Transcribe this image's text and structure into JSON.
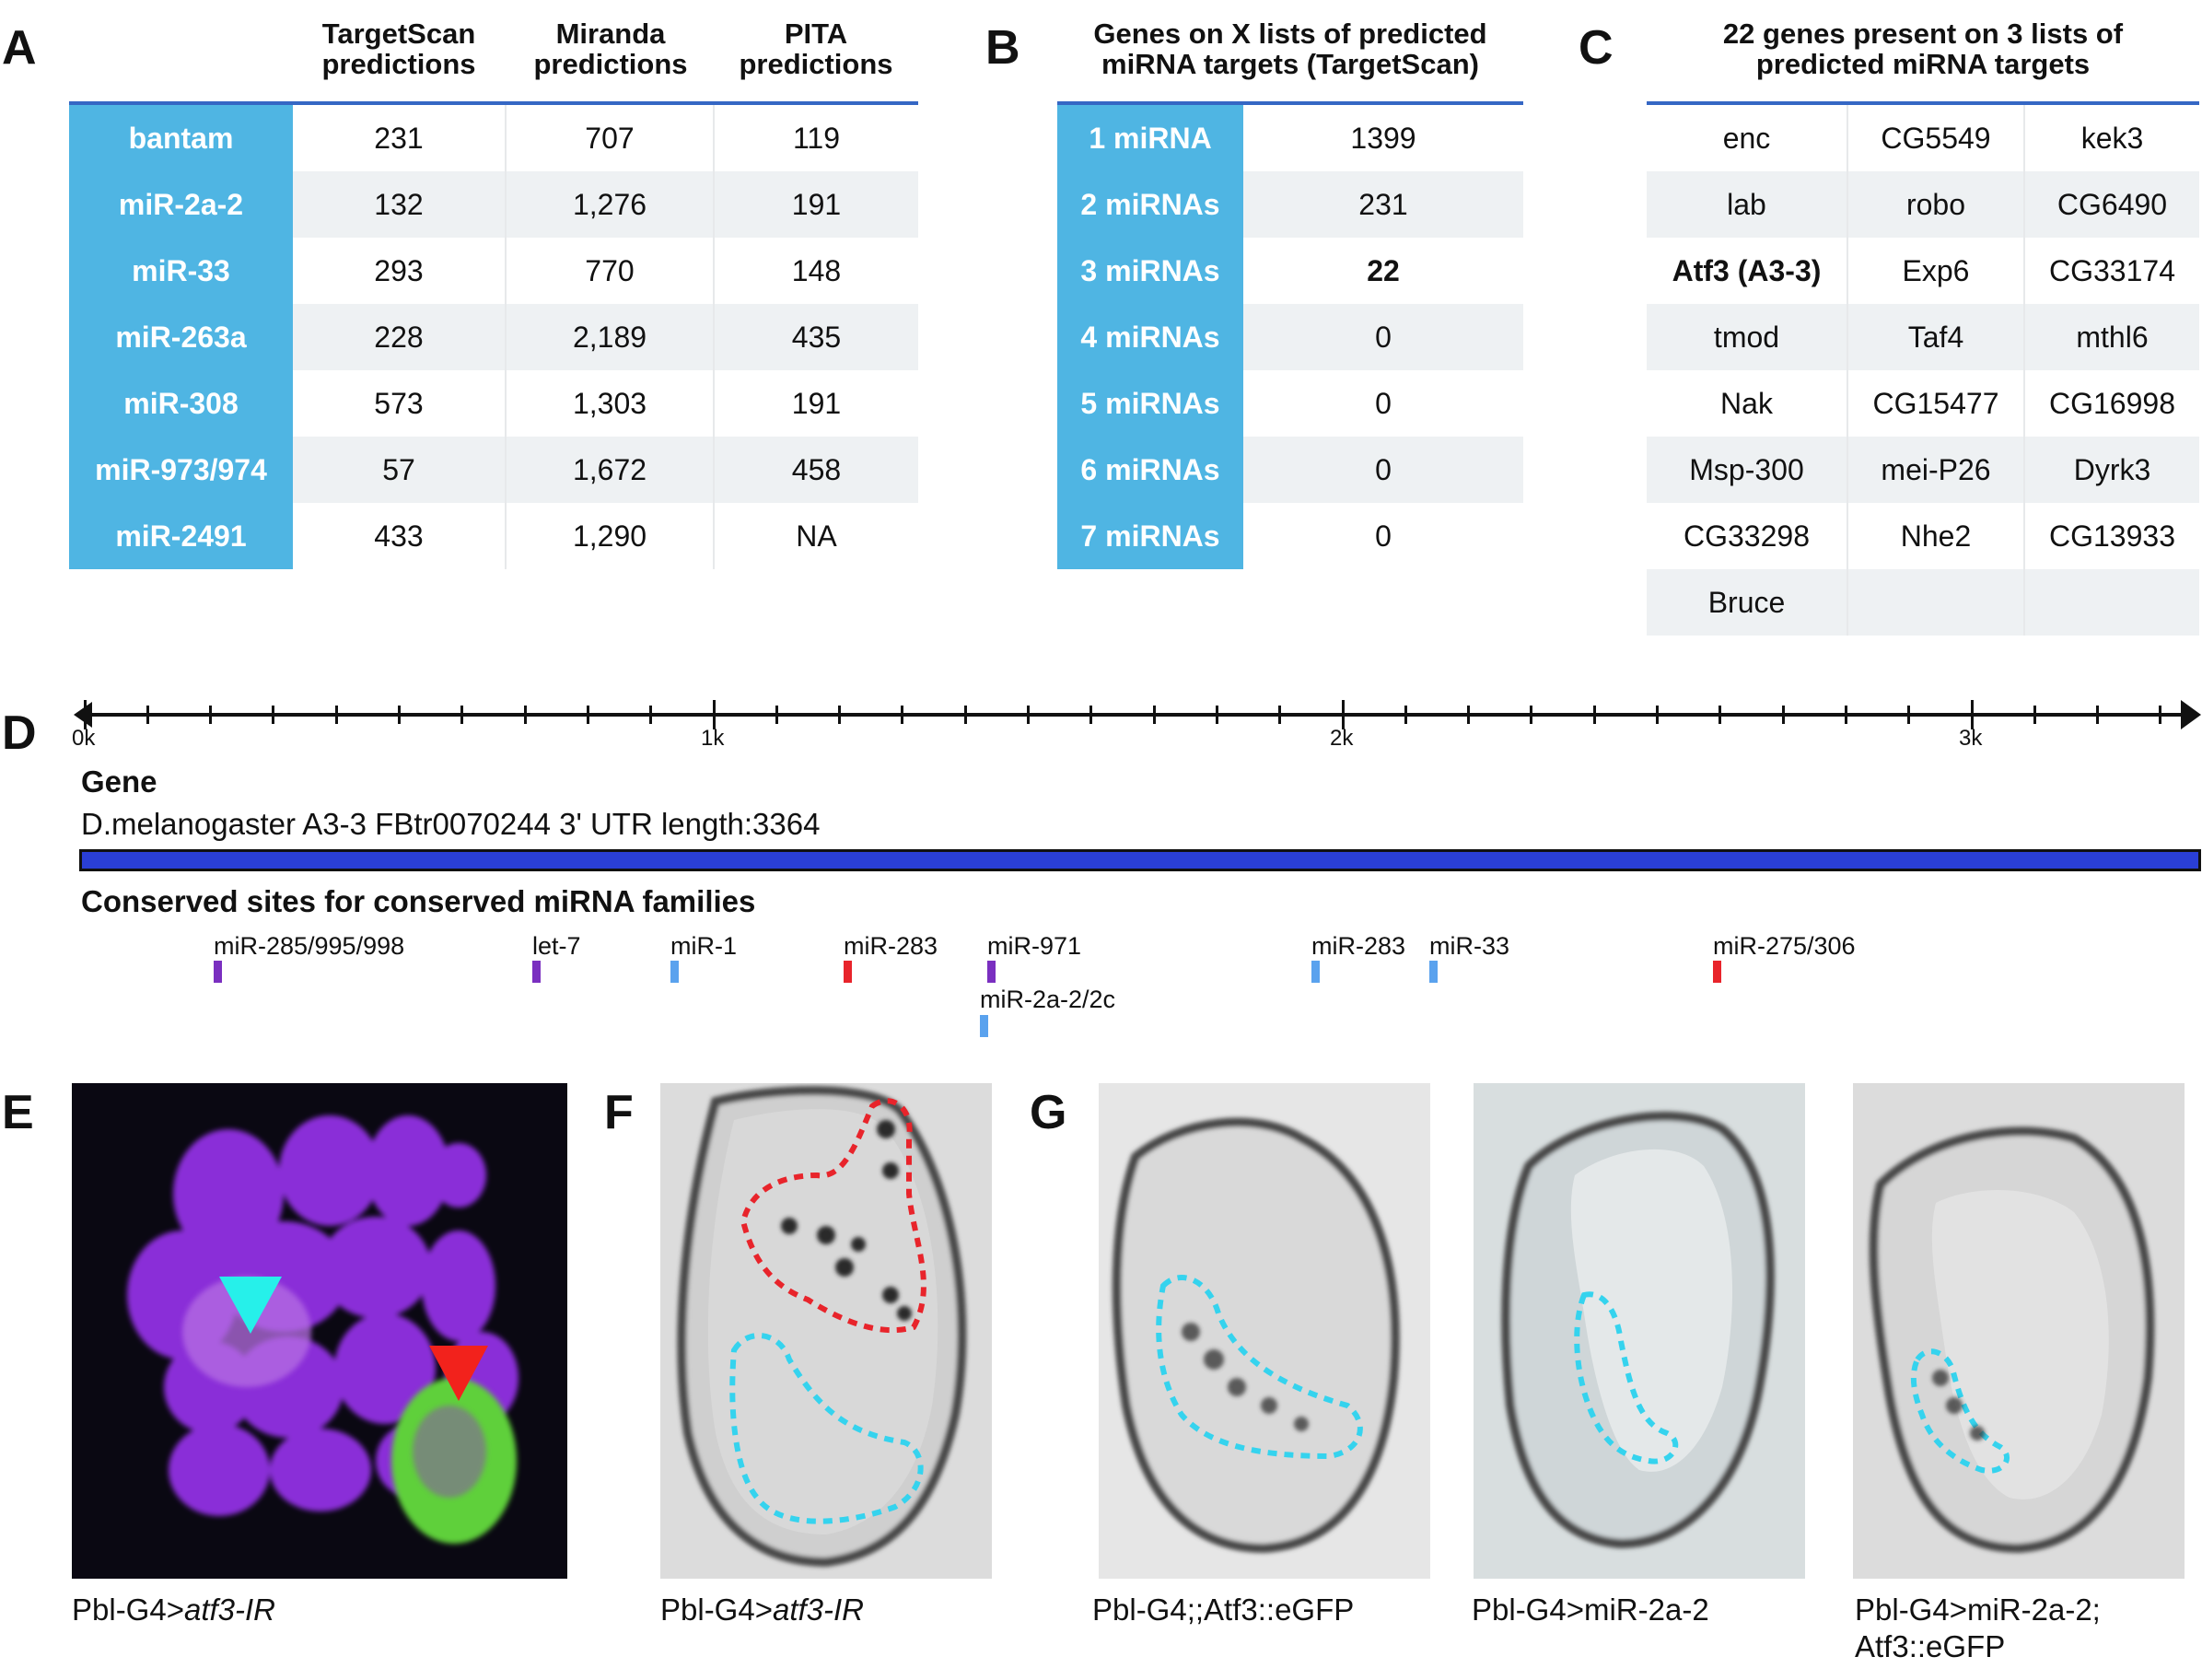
{
  "panel_letters": {
    "a": "A",
    "b": "B",
    "c": "C",
    "d": "D",
    "e": "E",
    "f": "F",
    "g": "G"
  },
  "tableA": {
    "headers": [
      "TargetScan\npredictions",
      "Miranda\npredictions",
      "PITA\npredictions"
    ],
    "rows": [
      {
        "mirna": "bantam",
        "ts": "231",
        "miranda": "707",
        "pita": "119"
      },
      {
        "mirna": "miR-2a-2",
        "ts": "132",
        "miranda": "1,276",
        "pita": "191"
      },
      {
        "mirna": "miR-33",
        "ts": "293",
        "miranda": "770",
        "pita": "148"
      },
      {
        "mirna": "miR-263a",
        "ts": "228",
        "miranda": "2,189",
        "pita": "435"
      },
      {
        "mirna": "miR-308",
        "ts": "573",
        "miranda": "1,303",
        "pita": "191"
      },
      {
        "mirna": "miR-973/974",
        "ts": "57",
        "miranda": "1,672",
        "pita": "458"
      },
      {
        "mirna": "miR-2491",
        "ts": "433",
        "miranda": "1,290",
        "pita": "NA"
      }
    ]
  },
  "tableB": {
    "title": "Genes on X lists of predicted\nmiRNA targets (TargetScan)",
    "rows": [
      {
        "label": "1 miRNA",
        "value": "1399"
      },
      {
        "label": "2 miRNAs",
        "value": "231"
      },
      {
        "label": "3 miRNAs",
        "value": "22"
      },
      {
        "label": "4 miRNAs",
        "value": "0"
      },
      {
        "label": "5 miRNAs",
        "value": "0"
      },
      {
        "label": "6 miRNAs",
        "value": "0"
      },
      {
        "label": "7 miRNAs",
        "value": "0"
      }
    ]
  },
  "tableC": {
    "title": "22 genes present on 3 lists of\npredicted miRNA targets",
    "rows": [
      [
        "enc",
        "CG5549",
        "kek3"
      ],
      [
        "lab",
        "robo",
        "CG6490"
      ],
      [
        "Atf3 (A3-3)",
        "Exp6",
        "CG33174"
      ],
      [
        "tmod",
        "Taf4",
        "mthl6"
      ],
      [
        "Nak",
        "CG15477",
        "CG16998"
      ],
      [
        "Msp-300",
        "mei-P26",
        "Dyrk3"
      ],
      [
        "CG33298",
        "Nhe2",
        "CG13933"
      ],
      [
        "Bruce",
        "",
        ""
      ]
    ]
  },
  "panelD": {
    "axis_labels": [
      "0k",
      "1k",
      "2k",
      "3k"
    ],
    "gene_heading": "Gene",
    "gene_desc": "D.melanogaster A3-3 FBtr0070244 3' UTR length:3364",
    "sites_heading": "Conserved sites for conserved miRNA families",
    "sites": [
      {
        "name": "miR-285/995/998",
        "color": "#7a2fc0"
      },
      {
        "name": "let-7",
        "color": "#7a2fc0"
      },
      {
        "name": "miR-1",
        "color": "#5aa2ee"
      },
      {
        "name": "miR-283",
        "color": "#e8242b"
      },
      {
        "name": "miR-971",
        "color": "#7a2fc0"
      },
      {
        "name": "miR-2a-2/2c",
        "color": "#5aa2ee"
      },
      {
        "name": "miR-283",
        "color": "#5aa2ee"
      },
      {
        "name": "miR-33",
        "color": "#5aa2ee"
      },
      {
        "name": "miR-275/306",
        "color": "#e8242b"
      }
    ],
    "bar_color": "#2a3fd6"
  },
  "captions": {
    "e": "Pbl-G4>",
    "e_it": "atf3-IR",
    "f": "Pbl-G4>",
    "f_it": "atf3-IR",
    "g1": "Pbl-G4;;Atf3::eGFP",
    "g2": "Pbl-G4>miR-2a-2",
    "g3a": "Pbl-G4>miR-2a-2;",
    "g3b": "Atf3::eGFP"
  },
  "colors": {
    "header_cell": "#4fb5e3",
    "rule": "#3567c4",
    "cyan_outline": "#35d3ee",
    "red_outline": "#e8242b"
  }
}
